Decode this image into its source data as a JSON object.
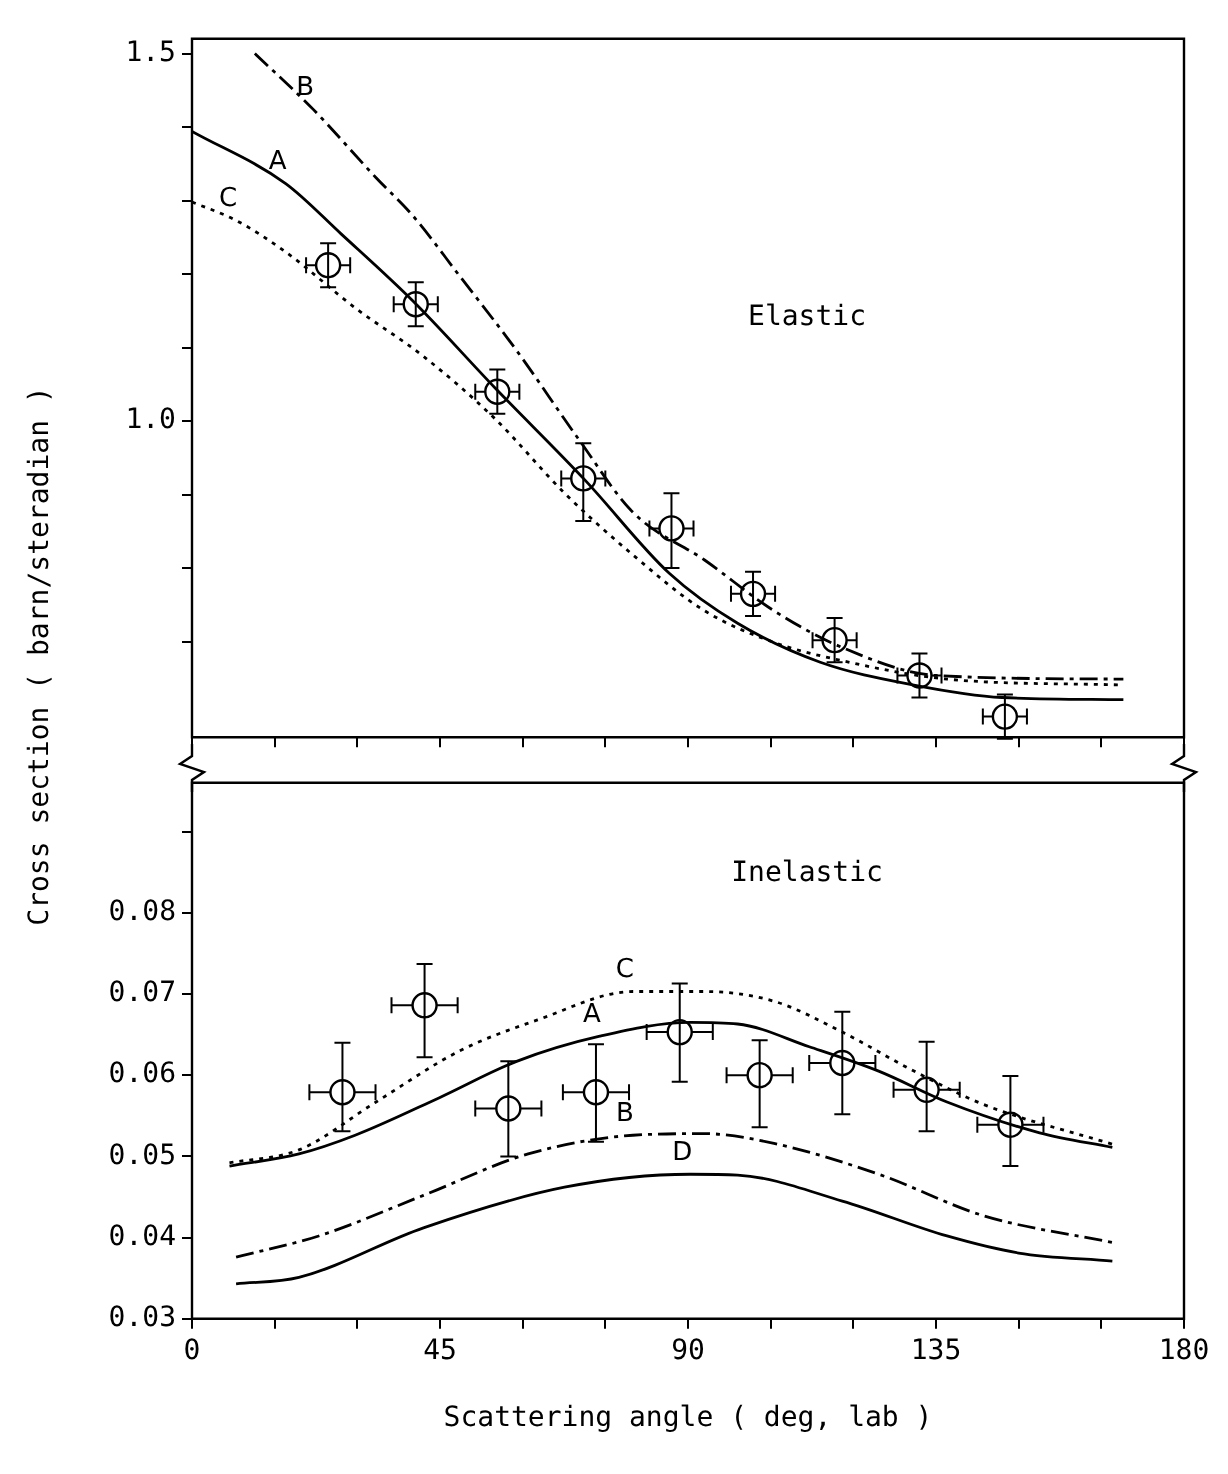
{
  "chart_data": [
    {
      "type": "line",
      "ylabel": "Cross section ( barn/steradian )",
      "annotations": [
        "Elastic"
      ],
      "tick_labels": "y",
      "xlim": [
        0,
        180
      ],
      "xticks": [
        {
          "value": 0,
          "label": null
        },
        {
          "value": 15,
          "label": null
        },
        {
          "value": 30,
          "label": null
        },
        {
          "value": 45,
          "label": null
        },
        {
          "value": 60,
          "label": null
        },
        {
          "value": 75,
          "label": null
        },
        {
          "value": 90,
          "label": null
        },
        {
          "value": 105,
          "label": null
        },
        {
          "value": 120,
          "label": null
        },
        {
          "value": 135,
          "label": null
        },
        {
          "value": 150,
          "label": null
        },
        {
          "value": 165,
          "label": null
        },
        {
          "value": 180,
          "label": null
        }
      ],
      "ylim": [
        0.57,
        1.52
      ],
      "yticks": [
        {
          "value": 0.7,
          "label": null
        },
        {
          "value": 0.8,
          "label": null
        },
        {
          "value": 0.9,
          "label": null
        },
        {
          "value": 1.0,
          "label": "1.0"
        },
        {
          "value": 1.1,
          "label": null
        },
        {
          "value": 1.2,
          "label": null
        },
        {
          "value": 1.3,
          "label": null
        },
        {
          "value": 1.4,
          "label": null
        },
        1.5
      ],
      "series": [
        {
          "name": "A",
          "type": "line",
          "line_style": "solid",
          "color": "#000000",
          "x": [
            0,
            17,
            27,
            40,
            55,
            71.4,
            86.6,
            99,
            114,
            131,
            147,
            169
          ],
          "values": [
            1.394,
            1.323,
            1.255,
            1.164,
            1.045,
            0.919,
            0.793,
            0.725,
            0.672,
            0.641,
            0.624,
            0.621
          ]
        },
        {
          "name": "B",
          "type": "line",
          "line_style": "dashed",
          "color": "#000000",
          "x": [
            11.4,
            22,
            33.4,
            40,
            48.6,
            58.9,
            70,
            80,
            93,
            105.6,
            118,
            135,
            169
          ],
          "values": [
            1.5,
            1.424,
            1.331,
            1.28,
            1.197,
            1.096,
            0.977,
            0.876,
            0.811,
            0.742,
            0.692,
            0.654,
            0.649
          ]
        },
        {
          "name": "C",
          "type": "line",
          "line_style": "dotted",
          "color": "#000000",
          "x": [
            0,
            8,
            17,
            29.6,
            42,
            55,
            67.6,
            80,
            93,
            105.6,
            118,
            137,
            169
          ],
          "values": [
            1.298,
            1.273,
            1.23,
            1.154,
            1.088,
            1.003,
            0.902,
            0.818,
            0.742,
            0.699,
            0.674,
            0.649,
            0.641
          ]
        },
        {
          "type": "scatter",
          "marker": "circle",
          "color": "#000000",
          "x": [
            24.7,
            40.6,
            55.4,
            71,
            87,
            101.8,
            116.6,
            132,
            147.5
          ],
          "values": [
            1.212,
            1.159,
            1.04,
            0.922,
            0.854,
            0.765,
            0.702,
            0.654,
            0.598
          ],
          "errors": [
            0.03,
            0.03,
            0.03,
            [
              0.864,
              0.97
            ],
            [
              0.8,
              0.902
            ],
            0.03,
            0.03,
            0.03,
            0.03
          ],
          "xerrors": [
            4,
            4,
            4,
            4,
            4,
            4,
            4,
            4,
            4
          ]
        }
      ]
    },
    {
      "type": "line",
      "xlabel": "Scattering angle ( deg, lab )",
      "annotations": [
        "Inelastic"
      ],
      "xlim": [
        0,
        180
      ],
      "xticks": [
        0,
        {
          "value": 15,
          "label": null
        },
        {
          "value": 30,
          "label": null
        },
        45,
        {
          "value": 60,
          "label": null
        },
        {
          "value": 75,
          "label": null
        },
        90,
        {
          "value": 105,
          "label": null
        },
        {
          "value": 120,
          "label": null
        },
        135,
        {
          "value": 150,
          "label": null
        },
        {
          "value": 165,
          "label": null
        },
        180
      ],
      "ylim": [
        0.03,
        0.096
      ],
      "yticks": [
        0.03,
        0.04,
        0.05,
        0.06,
        0.07,
        0.08,
        {
          "value": 0.09,
          "label": null
        }
      ],
      "series": [
        {
          "name": "A",
          "type": "line",
          "line_style": "solid",
          "color": "#000000",
          "x": [
            6.8,
            19.4,
            29.6,
            44.8,
            58.9,
            74,
            90.4,
            99,
            112,
            124.6,
            137,
            153.8,
            167
          ],
          "values": [
            0.0488,
            0.0503,
            0.0526,
            0.0572,
            0.0617,
            0.0648,
            0.0665,
            0.0663,
            0.0635,
            0.0605,
            0.0567,
            0.0529,
            0.0511
          ]
        },
        {
          "name": "C",
          "type": "line",
          "line_style": "dotted",
          "color": "#000000",
          "x": [
            6.8,
            19.4,
            33.4,
            48.6,
            62.7,
            80,
            93,
            105.6,
            118,
            131,
            143.6,
            167
          ],
          "values": [
            0.0492,
            0.0508,
            0.0567,
            0.063,
            0.0668,
            0.0703,
            0.0703,
            0.0691,
            0.0653,
            0.0605,
            0.0564,
            0.0515
          ]
        },
        {
          "name": "B",
          "type": "line",
          "line_style": "dashed",
          "color": "#000000",
          "x": [
            8,
            23,
            42,
            61,
            80,
            93,
            105.6,
            124.6,
            143.6,
            167
          ],
          "values": [
            0.0376,
            0.0402,
            0.0452,
            0.0503,
            0.0526,
            0.0528,
            0.0516,
            0.0478,
            0.0427,
            0.0394
          ]
        },
        {
          "name": "D",
          "type": "line",
          "line_style": "solid",
          "color": "#000000",
          "x": [
            8,
            19.4,
            42,
            67.6,
            90.4,
            99,
            118,
            137,
            150,
            167
          ],
          "values": [
            0.0343,
            0.0351,
            0.0412,
            0.0462,
            0.0478,
            0.0477,
            0.0445,
            0.0402,
            0.0381,
            0.0371
          ]
        },
        {
          "type": "scatter",
          "marker": "circle",
          "color": "#000000",
          "x": [
            27.3,
            42.2,
            57.4,
            73.3,
            88.5,
            103,
            118,
            133.3,
            148.5
          ],
          "values": [
            0.0579,
            0.0686,
            0.0559,
            0.0579,
            0.0653,
            0.06,
            0.0615,
            0.0582,
            0.0539
          ],
          "errors": [
            [
              0.0531,
              0.064
            ],
            [
              0.0622,
              0.0737
            ],
            [
              0.05,
              0.0617
            ],
            [
              0.0518,
              0.0638
            ],
            [
              0.0592,
              0.0713
            ],
            [
              0.0536,
              0.0643
            ],
            [
              0.0552,
              0.0678
            ],
            [
              0.0531,
              0.0641
            ],
            [
              0.0488,
              0.0599
            ]
          ],
          "xerrors": [
            6,
            6,
            6,
            6,
            6,
            6,
            6,
            6,
            6
          ]
        }
      ]
    }
  ]
}
